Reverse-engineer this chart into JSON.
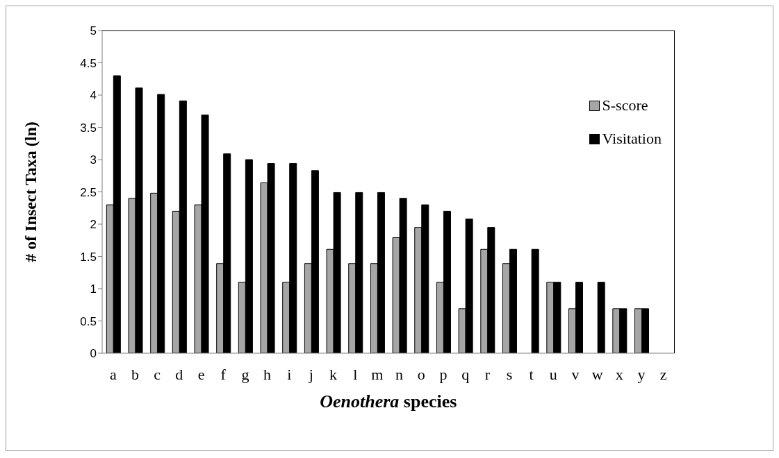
{
  "chart_data": {
    "type": "bar",
    "xlabel": "Oenothera species",
    "ylabel": "# of Insect Taxa (ln)",
    "categories": [
      "a",
      "b",
      "c",
      "d",
      "e",
      "f",
      "g",
      "h",
      "i",
      "j",
      "k",
      "l",
      "m",
      "n",
      "o",
      "p",
      "q",
      "r",
      "s",
      "t",
      "u",
      "v",
      "w",
      "x",
      "y",
      "z"
    ],
    "series": [
      {
        "name": "S-score",
        "color": "#a6a6a6",
        "values": [
          2.3,
          2.4,
          2.48,
          2.2,
          2.3,
          1.39,
          1.1,
          2.64,
          1.1,
          1.39,
          1.61,
          1.39,
          1.39,
          1.79,
          1.95,
          1.1,
          0.69,
          1.61,
          1.39,
          null,
          1.1,
          0.69,
          null,
          0.69,
          0.69,
          null
        ]
      },
      {
        "name": "Visitation",
        "color": "#000000",
        "values": [
          4.3,
          4.11,
          4.01,
          3.91,
          3.69,
          3.09,
          3.0,
          2.94,
          2.94,
          2.83,
          2.49,
          2.49,
          2.49,
          2.4,
          2.3,
          2.2,
          2.08,
          1.95,
          1.61,
          1.61,
          1.1,
          1.1,
          1.1,
          0.69,
          0.69,
          null
        ]
      }
    ],
    "ylim": [
      0,
      5
    ],
    "yticks": [
      0,
      0.5,
      1,
      1.5,
      2,
      2.5,
      3,
      3.5,
      4,
      4.5,
      5
    ],
    "grid": false,
    "legend": "top right"
  }
}
